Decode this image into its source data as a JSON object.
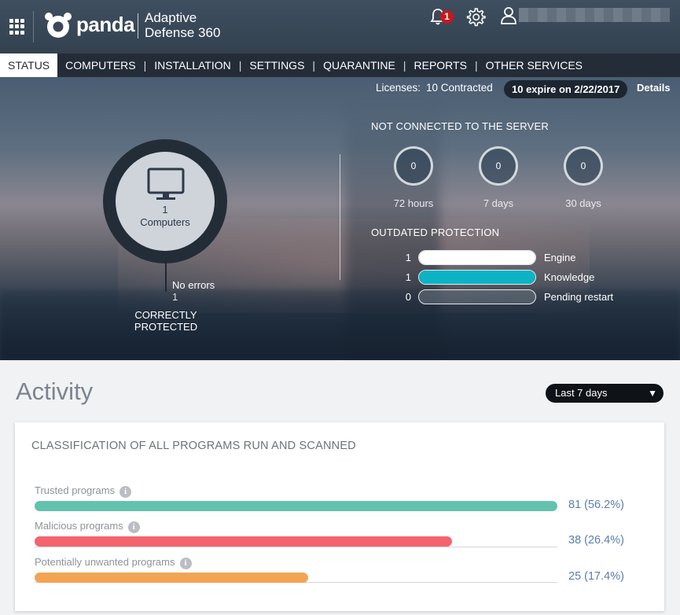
{
  "header": {
    "logo_text": "panda",
    "product_line1": "Adaptive",
    "product_line2": "Defense 360",
    "notifications_count": "1"
  },
  "nav": {
    "items": [
      "STATUS",
      "COMPUTERS",
      "INSTALLATION",
      "SETTINGS",
      "QUARANTINE",
      "REPORTS",
      "OTHER SERVICES"
    ],
    "active": "STATUS"
  },
  "licenses": {
    "label": "Licenses:",
    "contracted": "10 Contracted",
    "expire": "10 expire on 2/22/2017",
    "details": "Details"
  },
  "summary": {
    "computers_count": "1",
    "computers_label": "Computers",
    "no_errors_label": "No errors",
    "no_errors_count": "1",
    "status_label": "CORRECTLY PROTECTED"
  },
  "not_connected": {
    "title": "NOT CONNECTED TO THE SERVER",
    "items": [
      {
        "value": "0",
        "label": "72 hours"
      },
      {
        "value": "0",
        "label": "7 days"
      },
      {
        "value": "0",
        "label": "30 days"
      }
    ]
  },
  "outdated": {
    "title": "OUTDATED PROTECTION",
    "items": [
      {
        "count": "1",
        "label": "Engine",
        "fill": 1.0,
        "color": "#ffffff"
      },
      {
        "count": "1",
        "label": "Knowledge",
        "fill": 1.0,
        "color": "#0db3c4"
      },
      {
        "count": "0",
        "label": "Pending restart",
        "fill": 0.0,
        "color": "#0db3c4"
      }
    ]
  },
  "activity": {
    "title": "Activity",
    "range": "Last 7 days",
    "panel_title": "CLASSIFICATION OF ALL PROGRAMS RUN AND SCANNED",
    "programs": [
      {
        "label": "Trusted programs",
        "value": "81 (56.2%)",
        "fill": 1.0,
        "color": "#63c2ad"
      },
      {
        "label": "Malicious programs",
        "value": "38 (26.4%)",
        "fill": 0.798,
        "color": "#f4646f"
      },
      {
        "label": "Potentially unwanted programs",
        "value": "25 (17.4%)",
        "fill": 0.524,
        "color": "#f2a454"
      }
    ]
  }
}
